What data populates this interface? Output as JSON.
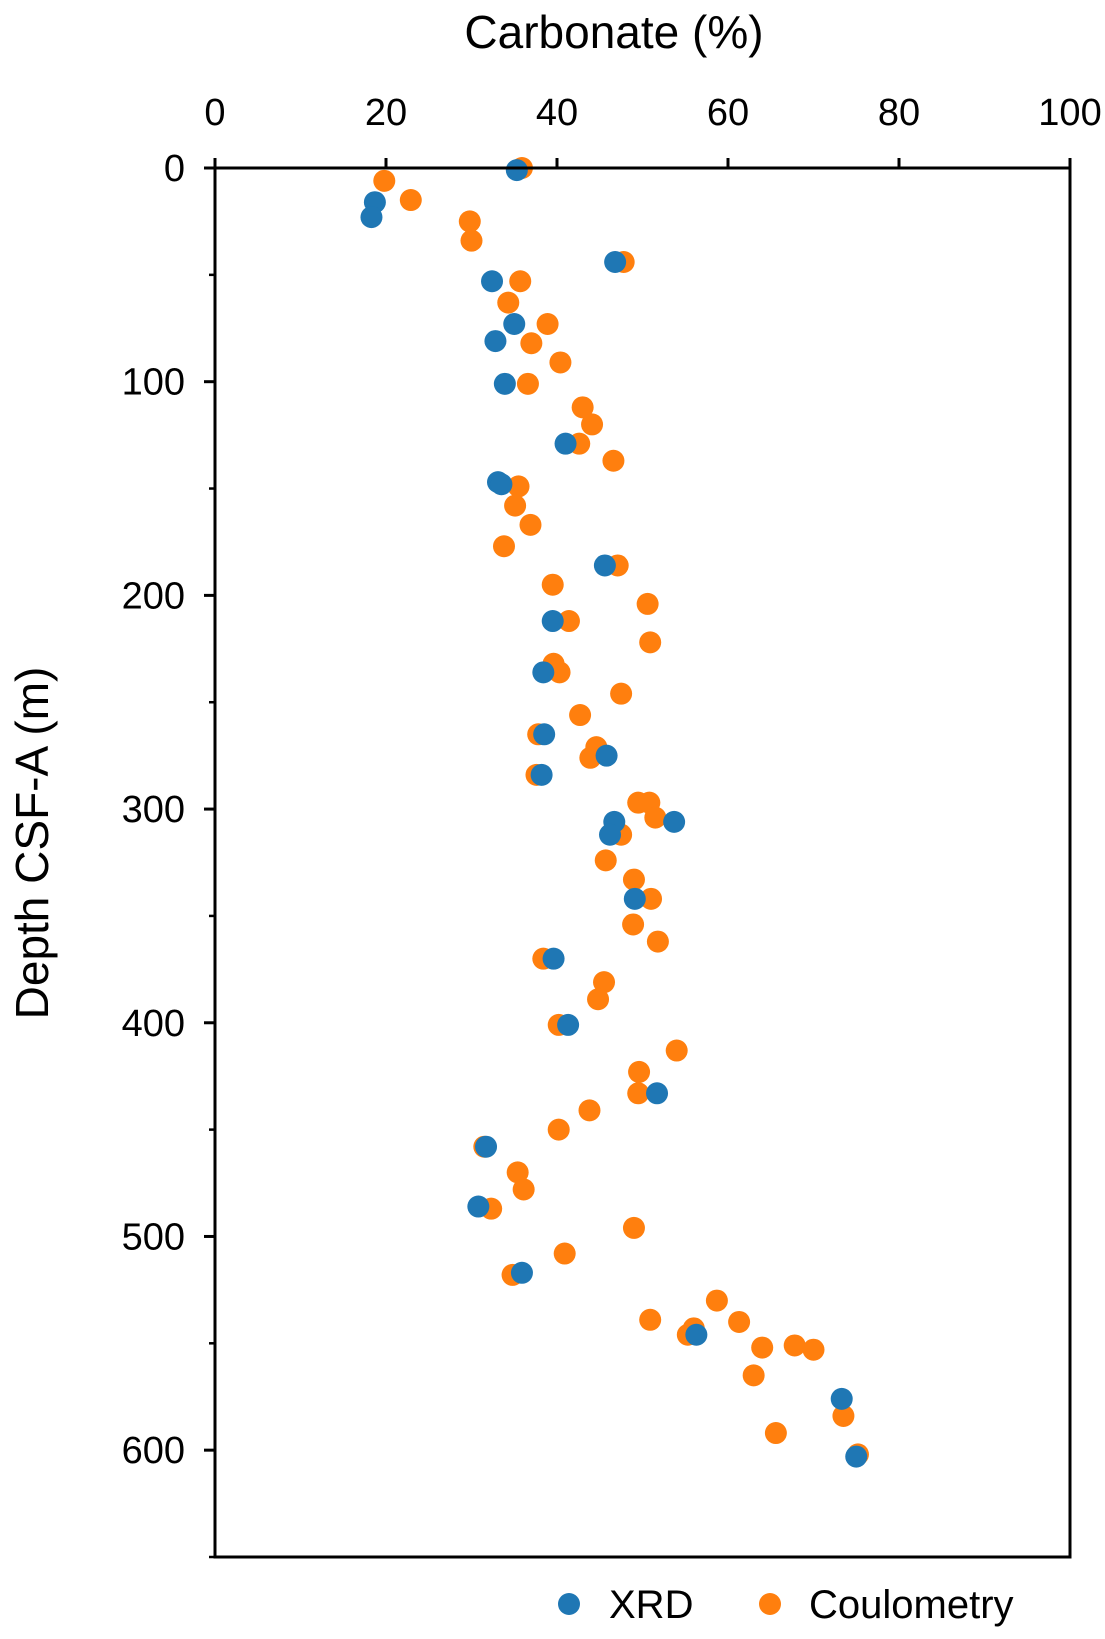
{
  "chart_data": {
    "type": "scatter",
    "xlabel": "Carbonate (%)",
    "ylabel": "Depth CSF-A (m)",
    "xlim": [
      0,
      100
    ],
    "ylim": [
      0,
      650
    ],
    "y_inverted": true,
    "x_axis_position": "top",
    "x_ticks": [
      0,
      20,
      40,
      60,
      80,
      100
    ],
    "y_ticks": [
      0,
      100,
      200,
      300,
      400,
      500,
      600
    ],
    "y_minor_ticks": [
      50,
      150,
      250,
      350,
      450,
      550,
      650
    ],
    "grid": false,
    "legend_position": "bottom-right",
    "series": [
      {
        "name": "XRD",
        "color": "#1f77b4",
        "points": [
          [
            35.3,
            1
          ],
          [
            18.7,
            16
          ],
          [
            18.3,
            23
          ],
          [
            46.8,
            44
          ],
          [
            32.4,
            53
          ],
          [
            35.0,
            73
          ],
          [
            32.8,
            81
          ],
          [
            33.9,
            101
          ],
          [
            41.0,
            129
          ],
          [
            33.1,
            147
          ],
          [
            33.5,
            148
          ],
          [
            45.6,
            186
          ],
          [
            39.5,
            212
          ],
          [
            38.4,
            236
          ],
          [
            38.5,
            265
          ],
          [
            45.8,
            275
          ],
          [
            38.2,
            284
          ],
          [
            46.7,
            306
          ],
          [
            53.7,
            306
          ],
          [
            46.2,
            312
          ],
          [
            49.1,
            342
          ],
          [
            39.6,
            370
          ],
          [
            41.3,
            401
          ],
          [
            51.7,
            433
          ],
          [
            31.7,
            458
          ],
          [
            30.8,
            486
          ],
          [
            35.9,
            517
          ],
          [
            56.3,
            546
          ],
          [
            73.3,
            576
          ],
          [
            75.0,
            603
          ]
        ]
      },
      {
        "name": "Coulometry",
        "color": "#ff7f0e",
        "points": [
          [
            35.9,
            0
          ],
          [
            19.8,
            6
          ],
          [
            22.9,
            15
          ],
          [
            29.8,
            25
          ],
          [
            30.0,
            34
          ],
          [
            47.8,
            44
          ],
          [
            35.7,
            53
          ],
          [
            34.3,
            63
          ],
          [
            38.9,
            73
          ],
          [
            37.0,
            82
          ],
          [
            40.4,
            91
          ],
          [
            36.6,
            101
          ],
          [
            43.0,
            112
          ],
          [
            44.1,
            120
          ],
          [
            42.6,
            129
          ],
          [
            46.6,
            137
          ],
          [
            35.5,
            149
          ],
          [
            35.1,
            158
          ],
          [
            36.9,
            167
          ],
          [
            33.8,
            177
          ],
          [
            47.1,
            186
          ],
          [
            39.5,
            195
          ],
          [
            50.6,
            204
          ],
          [
            41.4,
            212
          ],
          [
            50.9,
            222
          ],
          [
            39.6,
            232
          ],
          [
            40.3,
            236
          ],
          [
            47.5,
            246
          ],
          [
            42.7,
            256
          ],
          [
            37.8,
            265
          ],
          [
            44.6,
            271
          ],
          [
            43.9,
            276
          ],
          [
            37.6,
            284
          ],
          [
            49.5,
            297
          ],
          [
            50.8,
            297
          ],
          [
            51.5,
            304
          ],
          [
            47.5,
            312
          ],
          [
            45.7,
            324
          ],
          [
            49.0,
            333
          ],
          [
            51.0,
            342
          ],
          [
            48.9,
            354
          ],
          [
            51.8,
            362
          ],
          [
            38.4,
            370
          ],
          [
            45.5,
            381
          ],
          [
            44.8,
            389
          ],
          [
            40.2,
            401
          ],
          [
            54.0,
            413
          ],
          [
            49.6,
            423
          ],
          [
            49.5,
            433
          ],
          [
            43.8,
            441
          ],
          [
            40.2,
            450
          ],
          [
            31.5,
            458
          ],
          [
            35.4,
            470
          ],
          [
            36.1,
            478
          ],
          [
            32.3,
            487
          ],
          [
            49.0,
            496
          ],
          [
            40.9,
            508
          ],
          [
            34.8,
            518
          ],
          [
            58.7,
            530
          ],
          [
            50.9,
            539
          ],
          [
            61.3,
            540
          ],
          [
            56.0,
            543
          ],
          [
            55.3,
            546
          ],
          [
            64.0,
            552
          ],
          [
            67.8,
            551
          ],
          [
            70.0,
            553
          ],
          [
            63.0,
            565
          ],
          [
            73.5,
            584
          ],
          [
            65.6,
            592
          ],
          [
            75.2,
            602
          ]
        ]
      }
    ]
  }
}
